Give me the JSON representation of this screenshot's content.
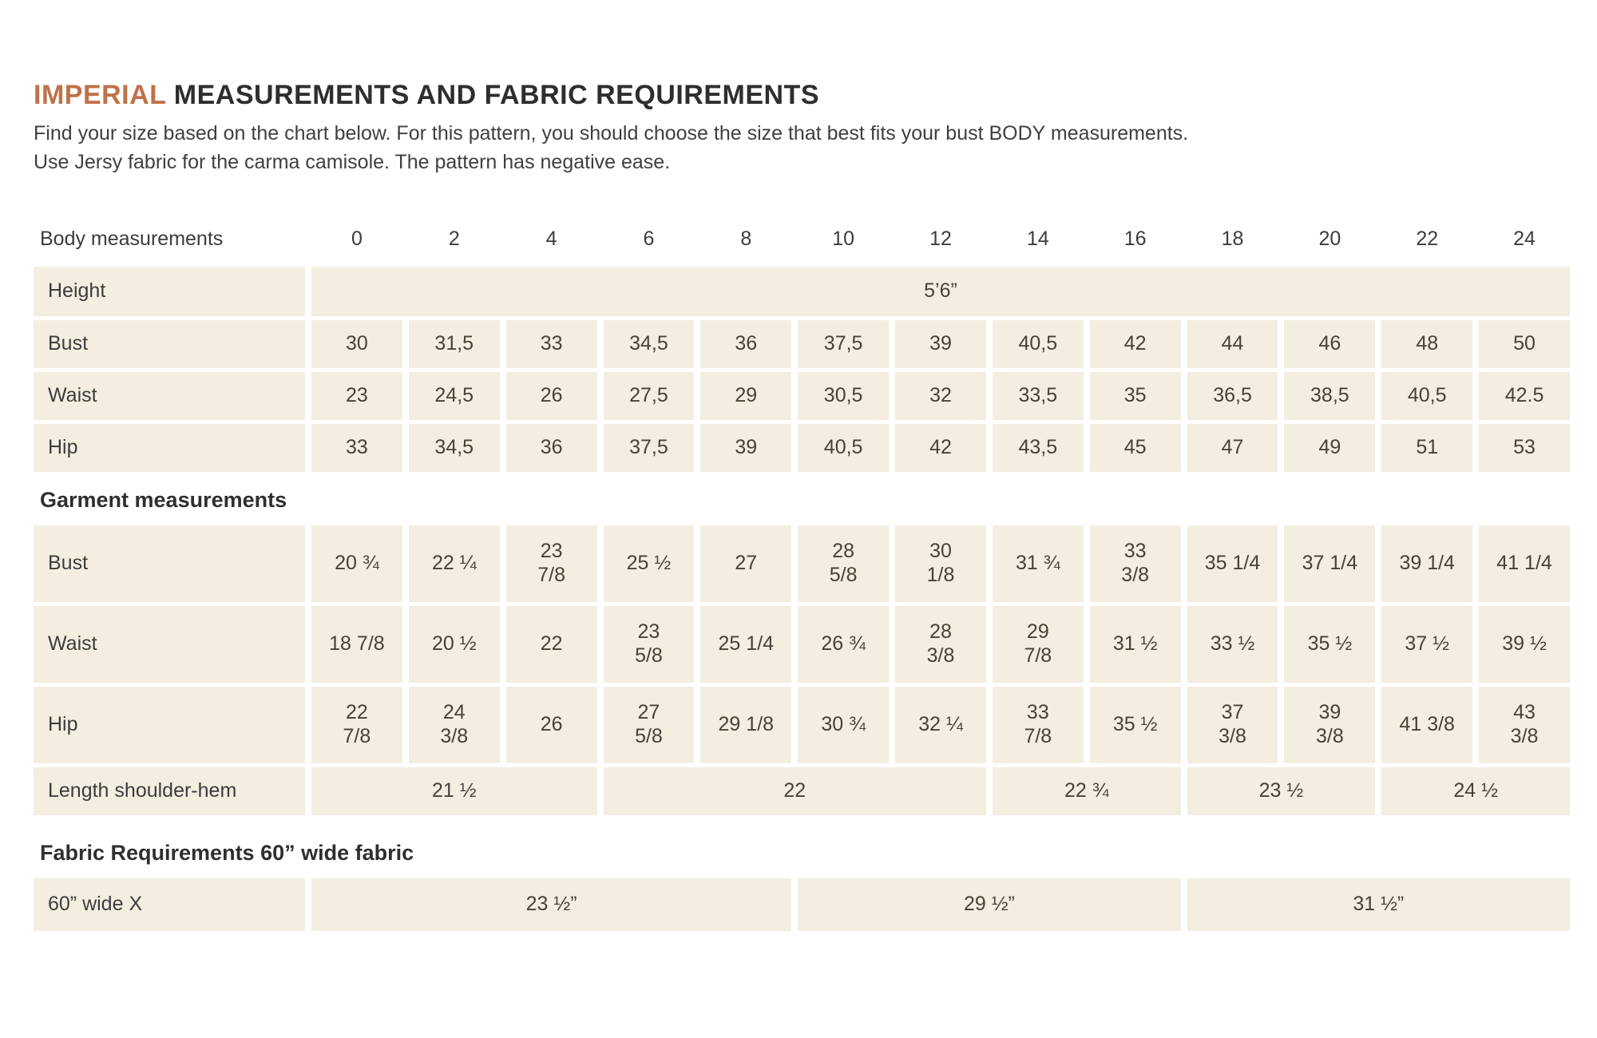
{
  "page": {
    "title_accent": "IMPERIAL",
    "title_rest": " MEASUREMENTS AND FABRIC REQUIREMENTS",
    "subtitle_line1": "Find your size based on the chart below. For this pattern, you should choose the size that best fits your bust BODY measurements.",
    "subtitle_line2": "Use Jersy fabric for the carma camisole. The pattern has negative ease."
  },
  "colors": {
    "accent": "#bf7249",
    "cell_background": "#f3eee0",
    "text": "#3c3c3c"
  },
  "table": {
    "header": {
      "label": "Body measurements",
      "sizes": [
        "0",
        "2",
        "4",
        "6",
        "8",
        "10",
        "12",
        "14",
        "16",
        "18",
        "20",
        "22",
        "24"
      ]
    },
    "body_section": {
      "rows": [
        {
          "label": "Height",
          "merged": [
            {
              "span": 13,
              "value": "5’6”"
            }
          ]
        },
        {
          "label": "Bust",
          "cells": [
            "30",
            "31,5",
            "33",
            "34,5",
            "36",
            "37,5",
            "39",
            "40,5",
            "42",
            "44",
            "46",
            "48",
            "50"
          ]
        },
        {
          "label": "Waist",
          "cells": [
            "23",
            "24,5",
            "26",
            "27,5",
            "29",
            "30,5",
            "32",
            "33,5",
            "35",
            "36,5",
            "38,5",
            "40,5",
            "42.5"
          ]
        },
        {
          "label": "Hip",
          "cells": [
            "33",
            "34,5",
            "36",
            "37,5",
            "39",
            "40,5",
            "42",
            "43,5",
            "45",
            "47",
            "49",
            "51",
            "53"
          ]
        }
      ]
    },
    "garment_section": {
      "heading": "Garment measurements",
      "rows": [
        {
          "label": "Bust",
          "cells": [
            "20 ¾",
            "22 ¼",
            "23\n7/8",
            "25 ½",
            "27",
            "28\n5/8",
            "30\n1/8",
            "31 ¾",
            "33\n3/8",
            "35 1/4",
            "37 1/4",
            "39 1/4",
            "41 1/4"
          ]
        },
        {
          "label": "Waist",
          "cells": [
            "18 7/8",
            "20 ½",
            "22",
            "23\n5/8",
            "25 1/4",
            "26 ¾",
            "28\n3/8",
            "29\n7/8",
            "31 ½",
            "33 ½",
            "35 ½",
            "37 ½",
            "39 ½"
          ]
        },
        {
          "label": "Hip",
          "cells": [
            "22\n7/8",
            "24\n3/8",
            "26",
            "27\n5/8",
            "29 1/8",
            "30 ¾",
            "32 ¼",
            "33\n7/8",
            "35 ½",
            "37\n3/8",
            "39\n3/8",
            "41 3/8",
            "43\n3/8"
          ]
        },
        {
          "label": "Length shoulder-hem",
          "merged": [
            {
              "span": 3,
              "value": "21 ½"
            },
            {
              "span": 4,
              "value": "22"
            },
            {
              "span": 2,
              "value": "22 ¾"
            },
            {
              "span": 2,
              "value": "23 ½"
            },
            {
              "span": 2,
              "value": "24 ½"
            }
          ]
        }
      ]
    },
    "fabric_section": {
      "heading": "Fabric Requirements 60” wide fabric",
      "rows": [
        {
          "label": "60” wide X",
          "merged": [
            {
              "span": 5,
              "value": "23 ½”"
            },
            {
              "span": 4,
              "value": "29 ½”"
            },
            {
              "span": 4,
              "value": "31 ½”"
            }
          ]
        }
      ]
    }
  }
}
